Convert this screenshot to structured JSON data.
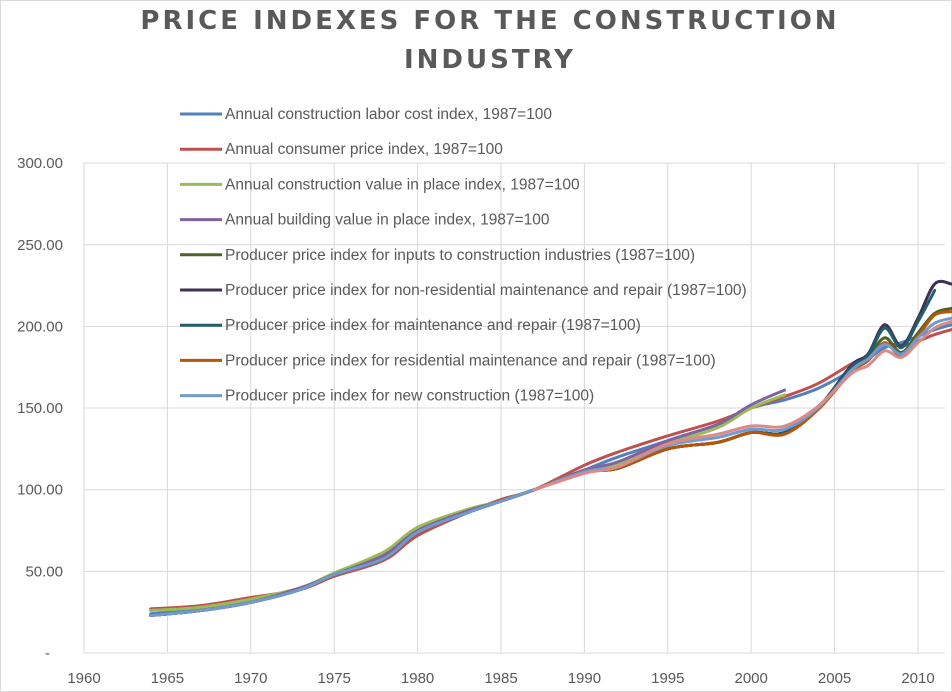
{
  "chart_data": {
    "type": "line",
    "title_lines": [
      "PRICE INDEXES FOR THE CONSTRUCTION",
      "INDUSTRY"
    ],
    "xlabel": "",
    "ylabel": "",
    "xlim": [
      1960,
      2012
    ],
    "ylim": [
      0,
      300
    ],
    "x_ticks": [
      "1960",
      "1965",
      "1970",
      "1975",
      "1980",
      "1985",
      "1990",
      "1995",
      "2000",
      "2005",
      "2010"
    ],
    "y_ticks": [
      "-",
      "50.00",
      "100.00",
      "150.00",
      "200.00",
      "250.00",
      "300.00"
    ],
    "grid": "vertical and horizontal",
    "legend_position": "top-left, inside plot",
    "x": [
      1964,
      1967,
      1970,
      1973,
      1975,
      1978,
      1980,
      1983,
      1985,
      1987,
      1990,
      1992,
      1995,
      1998,
      2000,
      2002,
      2004,
      2006,
      2007,
      2008,
      2009,
      2010,
      2011,
      2012
    ],
    "series": [
      {
        "name": "Annual construction labor cost index, 1987=100",
        "color": "#4f81bd",
        "values": [
          24,
          27,
          33,
          39,
          47,
          57,
          72,
          86,
          93,
          100,
          112,
          120,
          130,
          140,
          150,
          155,
          162,
          173,
          180,
          187,
          190,
          194,
          198,
          201
        ]
      },
      {
        "name": "Annual consumer price index, 1987=100",
        "color": "#c0504d",
        "values": [
          27,
          29,
          34,
          39,
          47,
          57,
          72,
          86,
          94,
          100,
          115,
          123,
          133,
          142,
          150,
          157,
          165,
          177,
          182,
          189,
          188,
          191,
          195,
          198
        ]
      },
      {
        "name": "Annual construction value in place index, 1987=100",
        "color": "#9bbb59",
        "values": [
          26,
          28,
          33,
          40,
          49,
          62,
          77,
          88,
          93,
          100,
          112,
          116,
          128,
          138,
          150,
          158,
          null,
          null,
          null,
          null,
          null,
          null,
          null,
          null
        ]
      },
      {
        "name": "Annual building value in place index, 1987=100",
        "color": "#8064a2",
        "values": [
          23,
          26,
          31,
          40,
          48,
          60,
          75,
          87,
          93,
          100,
          112,
          117,
          130,
          140,
          152,
          161,
          null,
          null,
          null,
          null,
          null,
          null,
          null,
          null
        ]
      },
      {
        "name": "Producer price index for inputs to construction industries (1987=100)",
        "color": "#4f6228",
        "values": [
          23,
          26,
          31,
          39,
          48,
          58,
          74,
          86,
          93,
          100,
          111,
          113,
          125,
          129,
          135,
          135,
          150,
          174,
          181,
          193,
          184,
          196,
          208,
          211
        ]
      },
      {
        "name": "Producer price index for non-residential maintenance and repair (1987=100)",
        "color": "#403152",
        "values": [
          23,
          26,
          31,
          39,
          48,
          58,
          74,
          86,
          93,
          100,
          111,
          113,
          125,
          129,
          135,
          135,
          150,
          176,
          183,
          201,
          188,
          205,
          226,
          226
        ]
      },
      {
        "name": "Producer price index for maintenance and repair (1987=100)",
        "color": "#215f6e",
        "values": [
          23,
          26,
          31,
          39,
          48,
          58,
          74,
          86,
          93,
          100,
          111,
          113,
          125,
          129,
          135,
          135,
          150,
          175,
          182,
          199,
          187,
          203,
          222,
          null
        ]
      },
      {
        "name": "Producer price index for residential maintenance and repair (1987=100)",
        "color": "#b65708",
        "values": [
          23,
          26,
          31,
          39,
          48,
          58,
          74,
          86,
          93,
          100,
          111,
          113,
          125,
          129,
          135,
          134,
          149,
          172,
          179,
          190,
          182,
          194,
          207,
          209
        ]
      },
      {
        "name": "Producer price index for new construction (1987=100)",
        "color": "#6f9bd1",
        "values": [
          23,
          26,
          31,
          39,
          48,
          58,
          74,
          86,
          93,
          100,
          111,
          114,
          127,
          132,
          137,
          137,
          150,
          173,
          180,
          189,
          183,
          193,
          202,
          205
        ]
      },
      {
        "color": "#dc8a88",
        "values": [
          null,
          null,
          null,
          null,
          null,
          null,
          null,
          null,
          null,
          100,
          110,
          114,
          128,
          134,
          139,
          139,
          151,
          171,
          176,
          185,
          181,
          190,
          199,
          203
        ]
      }
    ]
  }
}
